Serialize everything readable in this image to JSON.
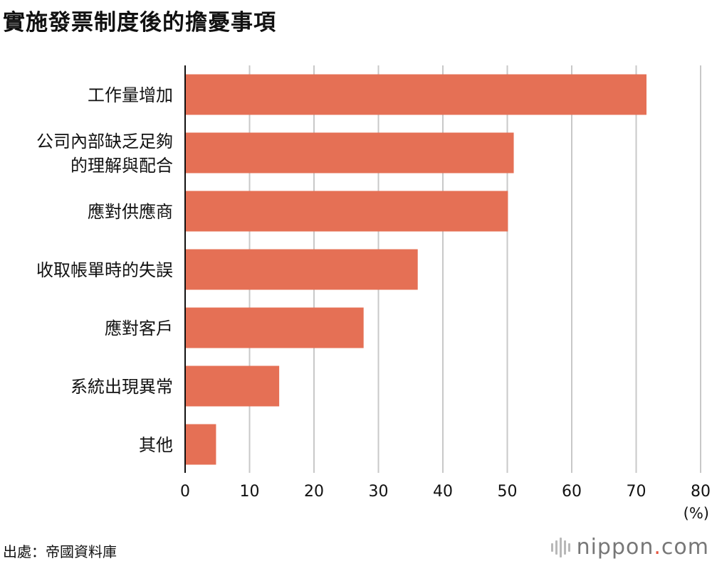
{
  "chart_data": {
    "type": "bar",
    "orientation": "horizontal",
    "title": "實施發票制度後的擔憂事項",
    "categories": [
      [
        "工作量增加"
      ],
      [
        "公司內部缺乏足夠",
        "的理解與配合"
      ],
      [
        "應對供應商"
      ],
      [
        "收取帳單時的失誤"
      ],
      [
        "應對客戶"
      ],
      [
        "系統出現異常"
      ],
      [
        "其他"
      ]
    ],
    "values": [
      71.6,
      51.0,
      50.1,
      36.1,
      27.7,
      14.6,
      4.8
    ],
    "xlim": [
      0,
      80
    ],
    "xticks": [
      0,
      10,
      20,
      30,
      40,
      50,
      60,
      70,
      80
    ],
    "unit_label": "(%)",
    "grid": true,
    "bar_color": "#e57055"
  },
  "source": "出處：帝國資料庫",
  "brand": {
    "name": "nippon",
    "dot": ".",
    "suffix": "com",
    "dot_color": "#e5533d"
  }
}
